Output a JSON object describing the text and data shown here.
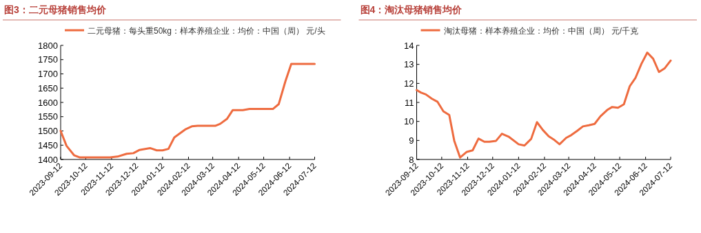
{
  "chart_data": [
    {
      "type": "line",
      "title": "图3：二元母猪销售均价",
      "legend": "top left",
      "x": [
        "2023-09-12",
        "2023-09-19",
        "2023-09-28",
        "2023-10-05",
        "2023-11-10",
        "2023-11-19",
        "2023-11-30",
        "2023-12-08",
        "2023-12-15",
        "2023-12-28",
        "2024-01-05",
        "2024-01-12",
        "2024-01-19",
        "2024-01-26",
        "2024-02-08",
        "2024-02-16",
        "2024-02-23",
        "2024-03-15",
        "2024-03-21",
        "2024-03-29",
        "2024-04-05",
        "2024-04-17",
        "2024-04-25",
        "2024-05-23",
        "2024-05-30",
        "2024-06-07",
        "2024-06-14",
        "2024-07-12"
      ],
      "series": [
        {
          "name": "二元母猪：每头重50kg：样本养殖企业：均价：中国（周） 元/头",
          "color": "#ee6b3f",
          "values": [
            1500,
            1448,
            1415,
            1407,
            1407,
            1410,
            1420,
            1422,
            1433,
            1440,
            1432,
            1432,
            1437,
            1477,
            1505,
            1516,
            1518,
            1518,
            1525,
            1542,
            1573,
            1573,
            1577,
            1577,
            1594,
            1674,
            1735,
            1735
          ]
        }
      ],
      "xlim": [
        "2023-09-12",
        "2024-07-12"
      ],
      "xticks": [
        "2023-09-12",
        "2023-10-12",
        "2023-11-12",
        "2023-12-12",
        "2024-01-12",
        "2024-02-12",
        "2024-03-12",
        "2024-04-12",
        "2024-05-12",
        "2024-06-12",
        "2024-07-12"
      ],
      "ylim": [
        1400,
        1800
      ],
      "yticks": [
        1400,
        1450,
        1500,
        1550,
        1600,
        1650,
        1700,
        1750,
        1800
      ]
    },
    {
      "type": "line",
      "title": "图4：淘汰母猪销售均价",
      "legend": "top left",
      "x": [
        "2023-09-12",
        "2023-09-17",
        "2023-09-23",
        "2023-09-30",
        "2023-10-07",
        "2023-10-14",
        "2023-10-21",
        "2023-10-27",
        "2023-11-03",
        "2023-11-11",
        "2023-11-18",
        "2023-11-25",
        "2023-12-02",
        "2023-12-08",
        "2023-12-16",
        "2023-12-23",
        "2023-12-31",
        "2024-01-12",
        "2024-01-19",
        "2024-01-27",
        "2024-02-03",
        "2024-02-10",
        "2024-02-17",
        "2024-02-23",
        "2024-03-01",
        "2024-03-09",
        "2024-03-15",
        "2024-03-22",
        "2024-03-29",
        "2024-04-05",
        "2024-04-12",
        "2024-04-19",
        "2024-04-27",
        "2024-05-03",
        "2024-05-10",
        "2024-05-17",
        "2024-05-24",
        "2024-05-31",
        "2024-06-07",
        "2024-06-14",
        "2024-06-21",
        "2024-06-28",
        "2024-07-05",
        "2024-07-12"
      ],
      "series": [
        {
          "name": "淘汰母猪：样本养殖企业：均价：中国（周） 元/千克",
          "color": "#ee6b3f",
          "values": [
            11.65,
            11.52,
            11.42,
            11.2,
            11.03,
            10.53,
            10.34,
            8.98,
            8.1,
            8.4,
            8.48,
            9.1,
            8.93,
            8.93,
            8.98,
            9.35,
            9.2,
            8.8,
            8.73,
            9.08,
            9.96,
            9.55,
            9.22,
            9.05,
            8.8,
            9.14,
            9.28,
            9.5,
            9.74,
            9.8,
            9.87,
            10.27,
            10.6,
            10.76,
            10.72,
            10.9,
            11.85,
            12.3,
            13.03,
            13.62,
            13.3,
            12.6,
            12.8,
            13.2
          ]
        }
      ],
      "xlim": [
        "2023-09-12",
        "2024-07-12"
      ],
      "xticks": [
        "2023-09-12",
        "2023-10-12",
        "2023-11-12",
        "2023-12-12",
        "2024-01-12",
        "2024-02-12",
        "2024-03-12",
        "2024-04-12",
        "2024-05-12",
        "2024-06-12",
        "2024-07-12"
      ],
      "ylim": [
        8,
        14
      ],
      "yticks": [
        8,
        9,
        10,
        11,
        12,
        13,
        14
      ]
    }
  ]
}
